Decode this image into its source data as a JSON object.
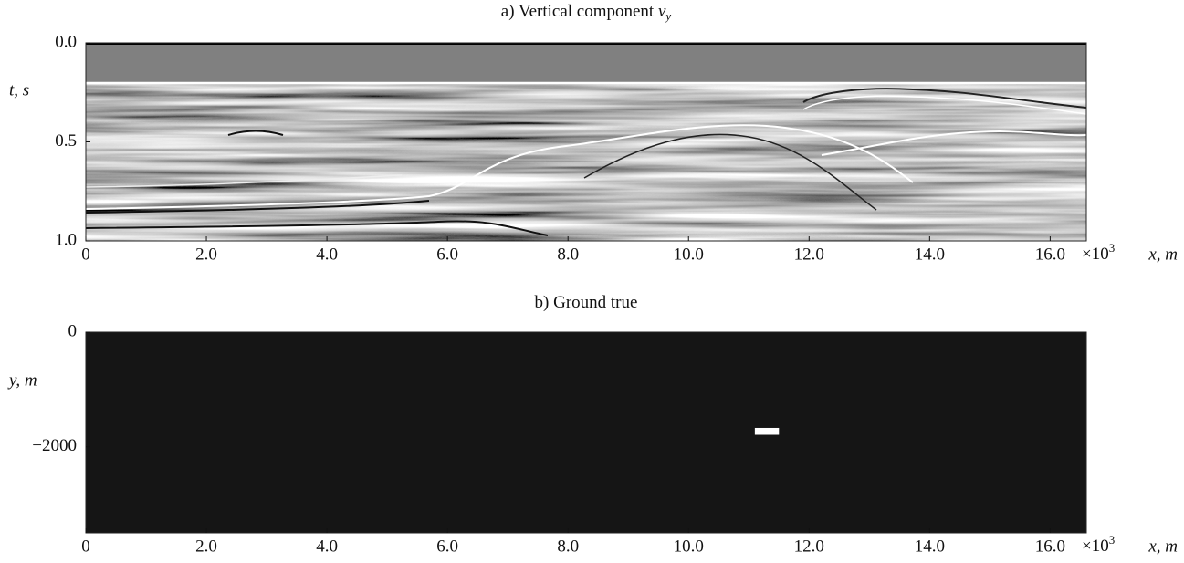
{
  "chart_data": [
    {
      "type": "image",
      "title": "a) Vertical component ",
      "title_symbol": "v",
      "title_subscript": "y",
      "ylabel": "t, s",
      "xlabel": "x, m",
      "x_multiplier": "×10",
      "x_multiplier_exp": "3",
      "xlim": [
        0,
        16.6
      ],
      "ylim": [
        0,
        1
      ],
      "xticks": [
        0,
        {
          "value": 2,
          "label": "2.0"
        },
        {
          "value": 4,
          "label": "4.0"
        },
        {
          "value": 6,
          "label": "6.0"
        },
        {
          "value": 8,
          "label": "8.0"
        },
        {
          "value": 10,
          "label": "10.0"
        },
        {
          "value": 12,
          "label": "12.0"
        },
        {
          "value": 14,
          "label": "14.0"
        },
        {
          "value": 16,
          "label": "16.0"
        }
      ],
      "yticks": [
        {
          "value": 0,
          "label": "0.0"
        },
        0.5,
        {
          "value": 1,
          "label": "1.0"
        }
      ]
    },
    {
      "type": "image",
      "title": "b) Ground true",
      "ylabel": "y, m",
      "xlabel": "x, m",
      "x_multiplier": "×10",
      "x_multiplier_exp": "3",
      "xlim": [
        0,
        16.6
      ],
      "ylim": [
        0,
        -3500
      ],
      "xticks": [
        0,
        {
          "value": 2,
          "label": "2.0"
        },
        {
          "value": 4,
          "label": "4.0"
        },
        {
          "value": 6,
          "label": "6.0"
        },
        {
          "value": 8,
          "label": "8.0"
        },
        {
          "value": 10,
          "label": "10.0"
        },
        {
          "value": 12,
          "label": "12.0"
        },
        {
          "value": 14,
          "label": "14.0"
        },
        {
          "value": 16,
          "label": "16.0"
        }
      ],
      "yticks": [
        0,
        {
          "value": -2000,
          "label": "−2000"
        }
      ],
      "background": "#151515",
      "anomaly": {
        "x": [
          11.1,
          11.5
        ],
        "y": [
          -1670,
          -1790
        ],
        "color": "#ffffff"
      }
    }
  ]
}
